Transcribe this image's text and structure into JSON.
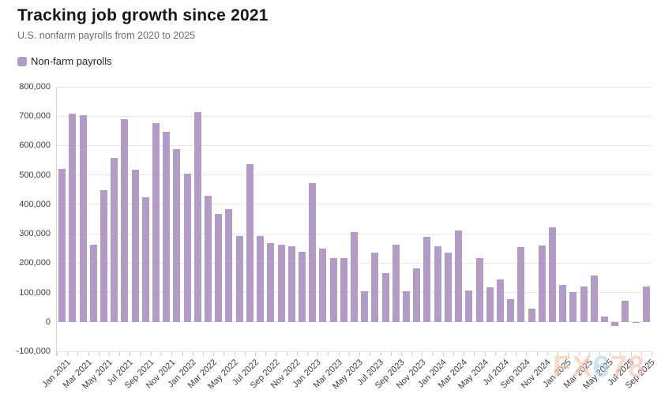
{
  "header": {
    "title": "Tracking job growth since 2021",
    "subtitle": "U.S. nonfarm payrolls from 2020 to 2025"
  },
  "legend": {
    "label": "Non-farm payrolls",
    "swatch_color": "#b29cc5"
  },
  "watermark": {
    "text": "FX678",
    "letters": [
      {
        "char": "F",
        "color": "#f1c6ae"
      },
      {
        "char": "X",
        "color": "#f1c6ae"
      },
      {
        "char": "6",
        "color": "#aed2e9"
      },
      {
        "char": "7",
        "color": "#f1c6ae"
      },
      {
        "char": "8",
        "color": "#f2c2bb"
      }
    ]
  },
  "colors": {
    "bar": "#b29cc5",
    "gridline": "#e7e7e7",
    "axis": "#d2d2d2",
    "tick": "#cfcfcf"
  },
  "chart_data": {
    "type": "bar",
    "title": "Tracking job growth since 2021",
    "subtitle": "U.S. nonfarm payrolls from 2020 to 2025",
    "legend_position": "top-left",
    "grid": true,
    "ylim": [
      -100000,
      800000
    ],
    "y_tick_values": [
      800000,
      700000,
      600000,
      500000,
      400000,
      300000,
      200000,
      100000,
      0,
      -100000
    ],
    "y_tick_labels": [
      "800,000",
      "700,000",
      "600,000",
      "500,000",
      "400,000",
      "300,000",
      "200,000",
      "100,000",
      "0",
      "-100,000"
    ],
    "x_tick_labels": [
      "Jan 2021",
      "Mar 2021",
      "May 2021",
      "Jul 2021",
      "Sep 2021",
      "Nov 2021",
      "Jan 2022",
      "Mar 2022",
      "May 2022",
      "Jul 2022",
      "Sep 2022",
      "Nov 2022",
      "Jan 2023",
      "Mar 2023",
      "May 2023",
      "Jul 2023",
      "Sep 2023",
      "Nov 2023",
      "Jan 2024",
      "Mar 2024",
      "May 2024",
      "Jul 2024",
      "Sep 2024",
      "Nov 2024",
      "Jan 2025",
      "Mar 2025",
      "May 2025",
      "Jul 2025",
      "Sep 2025"
    ],
    "categories": [
      "Jan 2021",
      "Feb 2021",
      "Mar 2021",
      "Apr 2021",
      "May 2021",
      "Jun 2021",
      "Jul 2021",
      "Aug 2021",
      "Sep 2021",
      "Oct 2021",
      "Nov 2021",
      "Dec 2021",
      "Jan 2022",
      "Feb 2022",
      "Mar 2022",
      "Apr 2022",
      "May 2022",
      "Jun 2022",
      "Jul 2022",
      "Aug 2022",
      "Sep 2022",
      "Oct 2022",
      "Nov 2022",
      "Dec 2022",
      "Jan 2023",
      "Feb 2023",
      "Mar 2023",
      "Apr 2023",
      "May 2023",
      "Jun 2023",
      "Jul 2023",
      "Aug 2023",
      "Sep 2023",
      "Oct 2023",
      "Nov 2023",
      "Dec 2023",
      "Jan 2024",
      "Feb 2024",
      "Mar 2024",
      "Apr 2024",
      "May 2024",
      "Jun 2024",
      "Jul 2024",
      "Aug 2024",
      "Sep 2024",
      "Oct 2024",
      "Nov 2024",
      "Dec 2024",
      "Jan 2025",
      "Feb 2025",
      "Mar 2025",
      "Apr 2025",
      "May 2025",
      "Jun 2025",
      "Jul 2025",
      "Aug 2025",
      "Sep 2025"
    ],
    "series": [
      {
        "name": "Non-farm payrolls",
        "color": "#b29cc5",
        "values": [
          520000,
          710000,
          704000,
          263000,
          447000,
          557000,
          689000,
          517000,
          424000,
          677000,
          647000,
          588000,
          504000,
          714000,
          428000,
          368000,
          384000,
          293000,
          537000,
          292000,
          269000,
          263000,
          256000,
          239000,
          472000,
          248000,
          217000,
          217000,
          306000,
          105000,
          236000,
          165000,
          262000,
          105000,
          182000,
          290000,
          256000,
          236000,
          310000,
          108000,
          216000,
          118000,
          144000,
          78000,
          255000,
          44000,
          261000,
          323000,
          125000,
          102000,
          120000,
          158000,
          19000,
          -13000,
          72000,
          -4000,
          119000
        ]
      }
    ]
  }
}
